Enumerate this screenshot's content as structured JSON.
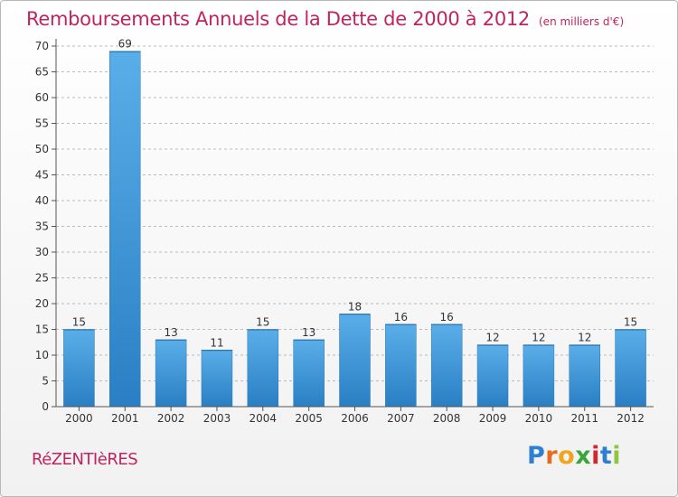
{
  "chart_data": {
    "type": "bar",
    "title": "Remboursements Annuels de la Dette de 2000 à 2012",
    "unit_note": "(en milliers d'€)",
    "categories": [
      "2000",
      "2001",
      "2002",
      "2003",
      "2004",
      "2005",
      "2006",
      "2007",
      "2008",
      "2009",
      "2010",
      "2011",
      "2012"
    ],
    "values": [
      15,
      69,
      13,
      11,
      15,
      13,
      18,
      16,
      16,
      12,
      12,
      12,
      15
    ],
    "data_labels": [
      "15",
      "69",
      "13",
      "11",
      "15",
      "13",
      "18",
      "16",
      "16",
      "12",
      "12",
      "12",
      "15"
    ],
    "y_ticks": [
      "0",
      "5",
      "10",
      "15",
      "20",
      "25",
      "30",
      "35",
      "40",
      "45",
      "50",
      "55",
      "60",
      "65",
      "70"
    ],
    "ylim": [
      0,
      70
    ],
    "grid": "horizontal dashed",
    "legend": "none",
    "bar_color_top": "#5aaee8",
    "bar_color_bottom": "#2a7fc4"
  },
  "footer": {
    "town": "RéZENTIèRES",
    "logo_letters": [
      {
        "ch": "P",
        "color": "#2d7fd1"
      },
      {
        "ch": "r",
        "color": "#e86a1a"
      },
      {
        "ch": "o",
        "color": "#f2a41c"
      },
      {
        "ch": "x",
        "color": "#3aa63a"
      },
      {
        "ch": "i",
        "color": "#d6262d"
      },
      {
        "ch": "t",
        "color": "#2d7fd1"
      },
      {
        "ch": "i",
        "color": "#8dc63f"
      }
    ]
  },
  "colors": {
    "title": "#c0245e",
    "axis": "#555555",
    "grid": "#bbbbbb"
  }
}
